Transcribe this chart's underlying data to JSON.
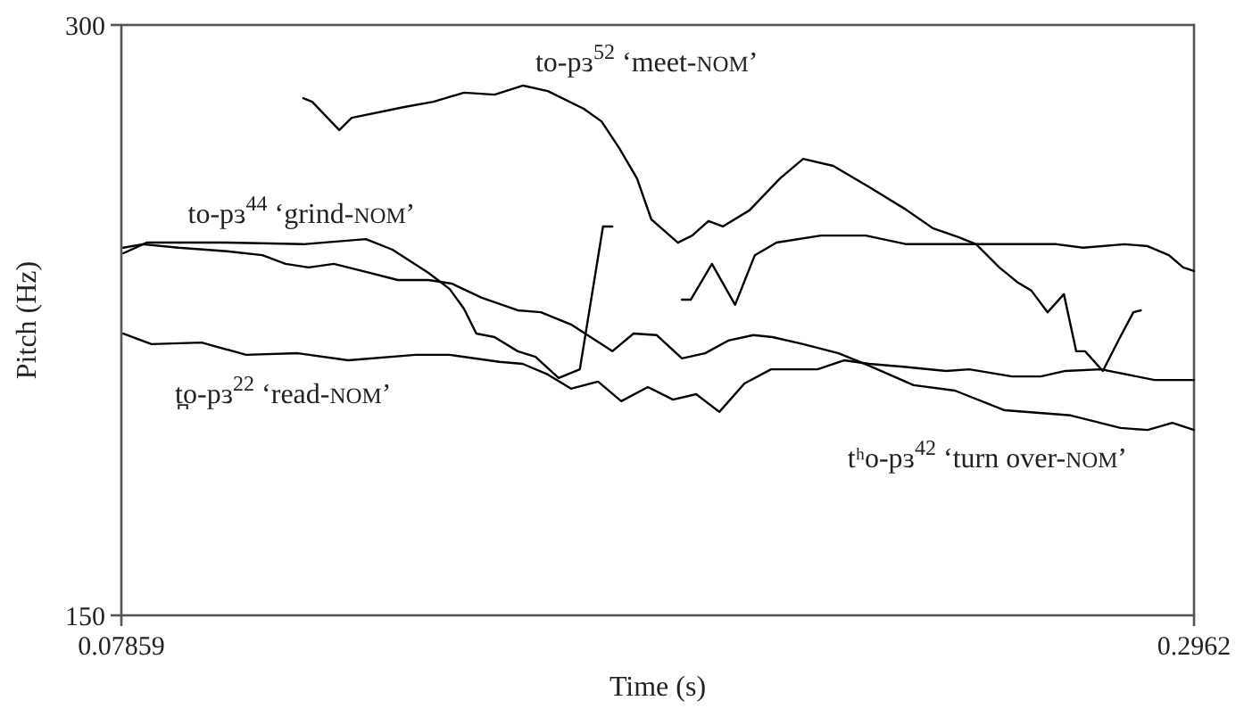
{
  "chart_data": {
    "type": "line",
    "xlabel": "Time (s)",
    "ylabel": "Pitch (Hz)",
    "xlim": [
      0.07859,
      0.2962
    ],
    "xticks": [
      0.07859,
      0.2962
    ],
    "ylim": [
      150,
      300
    ],
    "yticks": [
      150,
      300
    ],
    "marker": "none",
    "line_style": "solid",
    "series": [
      {
        "name": "to-pɜ$^{52}$ ‘meet-NOM’",
        "color": "#000000",
        "x": [
          0.1155,
          0.1173,
          0.1228,
          0.1253,
          0.1362,
          0.1419,
          0.1481,
          0.1543,
          0.1601,
          0.1651,
          0.1724,
          0.176,
          0.1796,
          0.1832,
          0.1861,
          0.1915,
          0.1944,
          0.1977,
          0.2006,
          0.206,
          0.2122,
          0.2169,
          0.223,
          0.2303,
          0.2375,
          0.2433,
          0.2484,
          0.252,
          0.2567,
          0.2603,
          0.2632,
          0.2665,
          0.2698,
          0.2723,
          0.2741,
          0.2777,
          0.281,
          0.2839,
          0.2854
        ],
        "values": [
          281.4,
          280.5,
          273.3,
          276.4,
          279.2,
          280.5,
          282.8,
          282.3,
          284.6,
          283.2,
          278.7,
          275.5,
          268.7,
          261.0,
          250.6,
          244.7,
          246.5,
          250.2,
          248.8,
          252.9,
          261.0,
          266.0,
          264.2,
          258.8,
          253.3,
          248.3,
          246.1,
          244.3,
          238.4,
          234.7,
          232.5,
          227.0,
          231.6,
          217.1,
          217.1,
          212.1,
          220.2,
          227.0,
          227.5
        ]
      },
      {
        "name": "to-pɜ$^{44}$ ‘grind-NOM’",
        "color": "#000000",
        "x": [
          0.079,
          0.0837,
          0.1,
          0.1155,
          0.1282,
          0.1336,
          0.1409,
          0.1452,
          0.1481,
          0.1506,
          0.1543,
          0.159,
          0.1626,
          0.1673,
          0.1716,
          0.1763,
          0.1782,
          0.185,
          0.1923,
          0.1941,
          0.1984,
          0.2031,
          0.2071,
          0.2115,
          0.2205,
          0.2296,
          0.2379,
          0.2433,
          0.2683,
          0.2737,
          0.2821,
          0.2868,
          0.2911,
          0.294,
          0.2962
        ],
        "values": [
          242.0,
          244.7,
          244.7,
          244.3,
          245.6,
          242.9,
          237.0,
          232.9,
          227.9,
          221.6,
          220.7,
          217.1,
          215.7,
          210.3,
          212.5,
          248.8,
          248.8,
          null,
          230.2,
          230.2,
          239.3,
          228.9,
          241.5,
          244.7,
          246.5,
          246.5,
          244.3,
          244.3,
          244.3,
          243.4,
          244.3,
          243.8,
          241.5,
          238.4,
          237.5
        ]
      },
      {
        "name": "tʰo-pɜ$^{42}$ ‘turn over-NOM’",
        "color": "#000000",
        "x": [
          0.079,
          0.0829,
          0.0902,
          0.1,
          0.1072,
          0.1119,
          0.1166,
          0.1217,
          0.1275,
          0.1347,
          0.1409,
          0.1456,
          0.1517,
          0.159,
          0.1637,
          0.1698,
          0.1782,
          0.1825,
          0.1872,
          0.1923,
          0.197,
          0.2017,
          0.2068,
          0.2107,
          0.2169,
          0.2241,
          0.2303,
          0.2393,
          0.2477,
          0.2578,
          0.2712,
          0.2813,
          0.2868,
          0.2918,
          0.2962
        ],
        "values": [
          243.4,
          244.3,
          243.4,
          242.5,
          241.5,
          239.3,
          238.4,
          239.3,
          237.5,
          235.2,
          235.2,
          234.3,
          230.7,
          227.5,
          227.0,
          223.9,
          217.1,
          221.6,
          221.2,
          215.3,
          216.6,
          219.8,
          221.2,
          220.7,
          218.9,
          216.6,
          213.4,
          208.5,
          207.1,
          202.1,
          200.8,
          197.6,
          197.1,
          198.9,
          197.1
        ]
      },
      {
        "name": "t̪o-pɜ$^{22}$ ‘read-NOM’",
        "color": "#000000",
        "x": [
          0.079,
          0.0847,
          0.0949,
          0.1039,
          0.1144,
          0.1246,
          0.1383,
          0.1452,
          0.1553,
          0.16,
          0.1651,
          0.1698,
          0.1753,
          0.18,
          0.1854,
          0.1905,
          0.1952,
          0.1999,
          0.205,
          0.2104,
          0.2198,
          0.2252,
          0.2303,
          0.2386,
          0.2459,
          0.2506,
          0.2593,
          0.2651,
          0.2701,
          0.2773,
          0.2882,
          0.2962
        ],
        "values": [
          221.6,
          218.9,
          219.3,
          216.2,
          216.6,
          214.8,
          216.2,
          216.2,
          214.4,
          213.9,
          211.2,
          207.6,
          209.4,
          204.4,
          208.0,
          204.8,
          206.2,
          201.7,
          208.9,
          212.5,
          212.5,
          214.8,
          213.9,
          213.0,
          212.1,
          212.5,
          210.7,
          210.7,
          212.1,
          212.5,
          209.8,
          209.8
        ]
      }
    ]
  }
}
